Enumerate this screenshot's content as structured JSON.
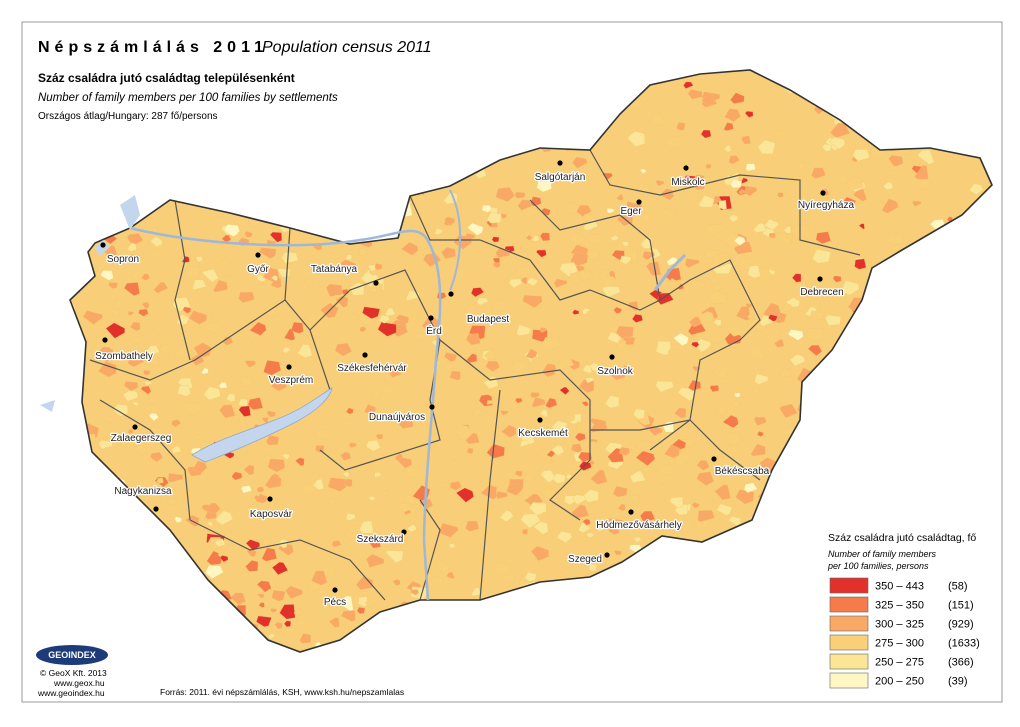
{
  "header": {
    "title_hu": "Népszámlálás 2011",
    "title_en": "Population census 2011",
    "subtitle_hu": "Száz családra jutó családtag településenként",
    "subtitle_en": "Number of family members per 100 families by settlements",
    "average": "Országos átlag/Hungary: 287 fő/persons"
  },
  "cities": [
    "Sopron",
    "Győr",
    "Tatabánya",
    "Salgótarján",
    "Miskolc",
    "Eger",
    "Nyíregyháza",
    "Debrecen",
    "Budapest",
    "Érd",
    "Székesfehérvár",
    "Szombathely",
    "Veszprém",
    "Szolnok",
    "Dunaújváros",
    "Kecskemét",
    "Zalaegerszeg",
    "Békéscsaba",
    "Nagykanizsa",
    "Kaposvár",
    "Szekszárd",
    "Hódmezővásárhely",
    "Szeged",
    "Pécs"
  ],
  "legend": {
    "title": "Száz családra jutó családtag, fő",
    "subtitle_1": "Number of family members",
    "subtitle_2": "per 100 families, persons",
    "items": [
      {
        "range": "350 – 443",
        "count": "(58)",
        "color": "#e2312b"
      },
      {
        "range": "325 – 350",
        "count": "(151)",
        "color": "#f57b4a"
      },
      {
        "range": "300 – 325",
        "count": "(929)",
        "color": "#f9a965"
      },
      {
        "range": "275 – 300",
        "count": "(1633)",
        "color": "#f9cf77"
      },
      {
        "range": "250 – 275",
        "count": "(366)",
        "color": "#fbe596"
      },
      {
        "range": "200 – 250",
        "count": "(39)",
        "color": "#fef7c4"
      }
    ]
  },
  "footer": {
    "logo": "GEOINDEX",
    "copyright": "© GeoX Kft. 2013",
    "url_1": "www.geox.hu",
    "url_2": "www.geoindex.hu",
    "source": "Forrás: 2011. évi népszámlálás, KSH, www.ksh.hu/nepszamlalas"
  }
}
